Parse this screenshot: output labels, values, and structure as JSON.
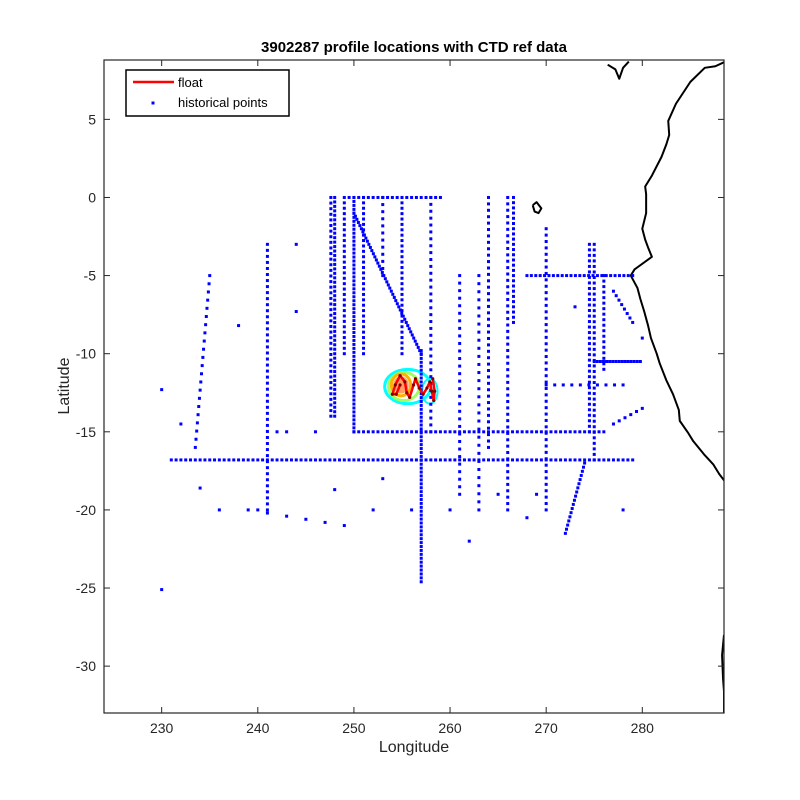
{
  "chart_data": {
    "type": "scatter",
    "title": "3902287 profile locations with CTD ref data",
    "xlabel": "Longitude",
    "ylabel": "Latitude",
    "xlim": [
      224,
      288.5
    ],
    "ylim": [
      -33,
      8.8
    ],
    "x_ticks": [
      230,
      240,
      250,
      260,
      270,
      280
    ],
    "y_ticks": [
      5,
      0,
      -5,
      -10,
      -15,
      -20,
      -25,
      -30
    ],
    "grid": false,
    "legend": {
      "placement": "top-left",
      "entries": [
        {
          "label": "float",
          "color": "#ff0000",
          "marker": "line"
        },
        {
          "label": "historical points",
          "color": "#0000ff",
          "marker": "point"
        }
      ]
    },
    "colors": {
      "historical": "#0000ff",
      "float": "#ff0000",
      "coast": "#000000",
      "contour_outer": "#00ffff",
      "contour_mid": "#a0ff60",
      "contour_inner": "#ffb000"
    },
    "series": [
      {
        "name": "historical points",
        "segments": [
          {
            "from": [
              231,
              -16.8
            ],
            "to": [
              279,
              -16.8
            ],
            "n": 97
          },
          {
            "from": [
              250,
              -15
            ],
            "to": [
              276,
              -15
            ],
            "n": 53
          },
          {
            "from": [
              257,
              -9.8
            ],
            "to": [
              257,
              -24.6
            ],
            "n": 60
          },
          {
            "from": [
              250,
              -1
            ],
            "to": [
              257,
              -10
            ],
            "n": 46
          },
          {
            "from": [
              250,
              0
            ],
            "to": [
              250,
              -15
            ],
            "n": 60
          },
          {
            "from": [
              248,
              0
            ],
            "to": [
              248,
              -14
            ],
            "n": 50
          },
          {
            "from": [
              247.6,
              0
            ],
            "to": [
              247.6,
              -14
            ],
            "n": 40
          },
          {
            "from": [
              251,
              0
            ],
            "to": [
              251,
              -10
            ],
            "n": 30
          },
          {
            "from": [
              249,
              0
            ],
            "to": [
              249,
              -10
            ],
            "n": 30
          },
          {
            "from": [
              241,
              -3
            ],
            "to": [
              241,
              -20
            ],
            "n": 45
          },
          {
            "from": [
              253,
              0
            ],
            "to": [
              253,
              -5
            ],
            "n": 12
          },
          {
            "from": [
              255,
              0
            ],
            "to": [
              255,
              -10
            ],
            "n": 30
          },
          {
            "from": [
              258,
              0
            ],
            "to": [
              258,
              -15
            ],
            "n": 35
          },
          {
            "from": [
              264,
              0
            ],
            "to": [
              264,
              -16
            ],
            "n": 40
          },
          {
            "from": [
              266,
              0
            ],
            "to": [
              266,
              -20
            ],
            "n": 50
          },
          {
            "from": [
              266.6,
              0
            ],
            "to": [
              266.6,
              -8
            ],
            "n": 25
          },
          {
            "from": [
              270,
              -2
            ],
            "to": [
              270,
              -20
            ],
            "n": 45
          },
          {
            "from": [
              261,
              -5
            ],
            "to": [
              261,
              -19
            ],
            "n": 30
          },
          {
            "from": [
              263,
              -5
            ],
            "to": [
              263,
              -20
            ],
            "n": 30
          },
          {
            "from": [
              275,
              -3
            ],
            "to": [
              275,
              -16.8
            ],
            "n": 40
          },
          {
            "from": [
              274.5,
              -3
            ],
            "to": [
              274.5,
              -15
            ],
            "n": 35
          },
          {
            "from": [
              276,
              -5
            ],
            "to": [
              276,
              -11
            ],
            "n": 18
          },
          {
            "from": [
              274,
              -17
            ],
            "to": [
              272,
              -21.5
            ],
            "n": 18
          },
          {
            "from": [
              275,
              -10.5
            ],
            "to": [
              279.8,
              -10.5
            ],
            "n": 16
          },
          {
            "from": [
              268,
              -5
            ],
            "to": [
              279,
              -5
            ],
            "n": 25
          },
          {
            "from": [
              249.5,
              0
            ],
            "to": [
              259,
              0
            ],
            "n": 20
          },
          {
            "from": [
              235,
              -5
            ],
            "to": [
              233.5,
              -16
            ],
            "n": 22
          },
          {
            "from": [
              239,
              -20
            ],
            "to": [
              249,
              -21
            ],
            "n": 6
          },
          {
            "from": [
              277,
              -6
            ],
            "to": [
              279,
              -8
            ],
            "n": 8
          },
          {
            "from": [
              277,
              -14.5
            ],
            "to": [
              280,
              -13.5
            ],
            "n": 6
          },
          {
            "from": [
              270,
              -12
            ],
            "to": [
              278,
              -12
            ],
            "n": 10
          }
        ],
        "points": [
          [
            230,
            -12.3
          ],
          [
            230,
            -25.1
          ],
          [
            232,
            -14.5
          ],
          [
            234,
            -18.6
          ],
          [
            236,
            -20
          ],
          [
            238,
            -8.2
          ],
          [
            240,
            -20
          ],
          [
            242,
            -15
          ],
          [
            243,
            -15
          ],
          [
            244,
            -3
          ],
          [
            244,
            -7.3
          ],
          [
            246,
            -15
          ],
          [
            248,
            -18.7
          ],
          [
            252,
            -20
          ],
          [
            253,
            -18
          ],
          [
            256,
            -20
          ],
          [
            260,
            -20
          ],
          [
            262,
            -22
          ],
          [
            265,
            -19
          ],
          [
            268,
            -20.5
          ],
          [
            269,
            -19
          ],
          [
            273,
            -7
          ],
          [
            278,
            -20
          ],
          [
            280,
            -9
          ]
        ]
      },
      {
        "name": "float",
        "path": [
          [
            254.8,
            -12.0
          ],
          [
            254.4,
            -12.6
          ],
          [
            254.0,
            -12.6
          ],
          [
            254.3,
            -12.0
          ],
          [
            254.8,
            -11.4
          ],
          [
            255.3,
            -11.8
          ],
          [
            255.5,
            -12.5
          ],
          [
            255.8,
            -12.8
          ],
          [
            256.2,
            -12.0
          ],
          [
            256.4,
            -11.6
          ],
          [
            256.8,
            -12.2
          ],
          [
            257.2,
            -12.6
          ],
          [
            257.6,
            -12.2
          ],
          [
            257.9,
            -11.8
          ],
          [
            258.1,
            -12.4
          ],
          [
            258.3,
            -13.0
          ],
          [
            258.4,
            -12.4
          ],
          [
            258.2,
            -11.6
          ]
        ]
      }
    ],
    "annotations": []
  }
}
